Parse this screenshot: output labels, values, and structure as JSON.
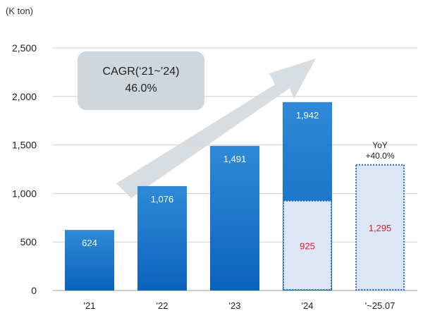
{
  "chart_data": {
    "type": "bar",
    "unit_label": "(K ton)",
    "categories": [
      "'21",
      "'22",
      "'23",
      "'24",
      "'~25.07"
    ],
    "series": [
      {
        "values": [
          624,
          1076,
          1491,
          1942,
          null
        ],
        "value_labels": [
          "624",
          "1,076",
          "1,491",
          "1,942",
          ""
        ]
      },
      {
        "values": [
          null,
          null,
          null,
          925,
          1295
        ],
        "value_labels": [
          "",
          "",
          "",
          "925",
          "1,295"
        ]
      }
    ],
    "yticks": [
      "0",
      "500",
      "1,000",
      "1,500",
      "2,000",
      "2,500"
    ],
    "ylim": [
      0,
      2500
    ],
    "grid": true,
    "annotations": {
      "cagr_line1": "CAGR(‘21~’24)",
      "cagr_line2": "46.0%",
      "yoy_line1": "YoY",
      "yoy_line2": "+40.0%"
    },
    "colors": {
      "bar_top": "#2f8ad8",
      "bar_bottom": "#0b63bd",
      "partial_fill": "#dde6f6",
      "partial_border": "#1f6fc2",
      "partial_label": "#e8192c",
      "grid": "#d0d0d0",
      "arrow": "#d4d9de",
      "cagr_box": "#cfd6dc"
    }
  }
}
